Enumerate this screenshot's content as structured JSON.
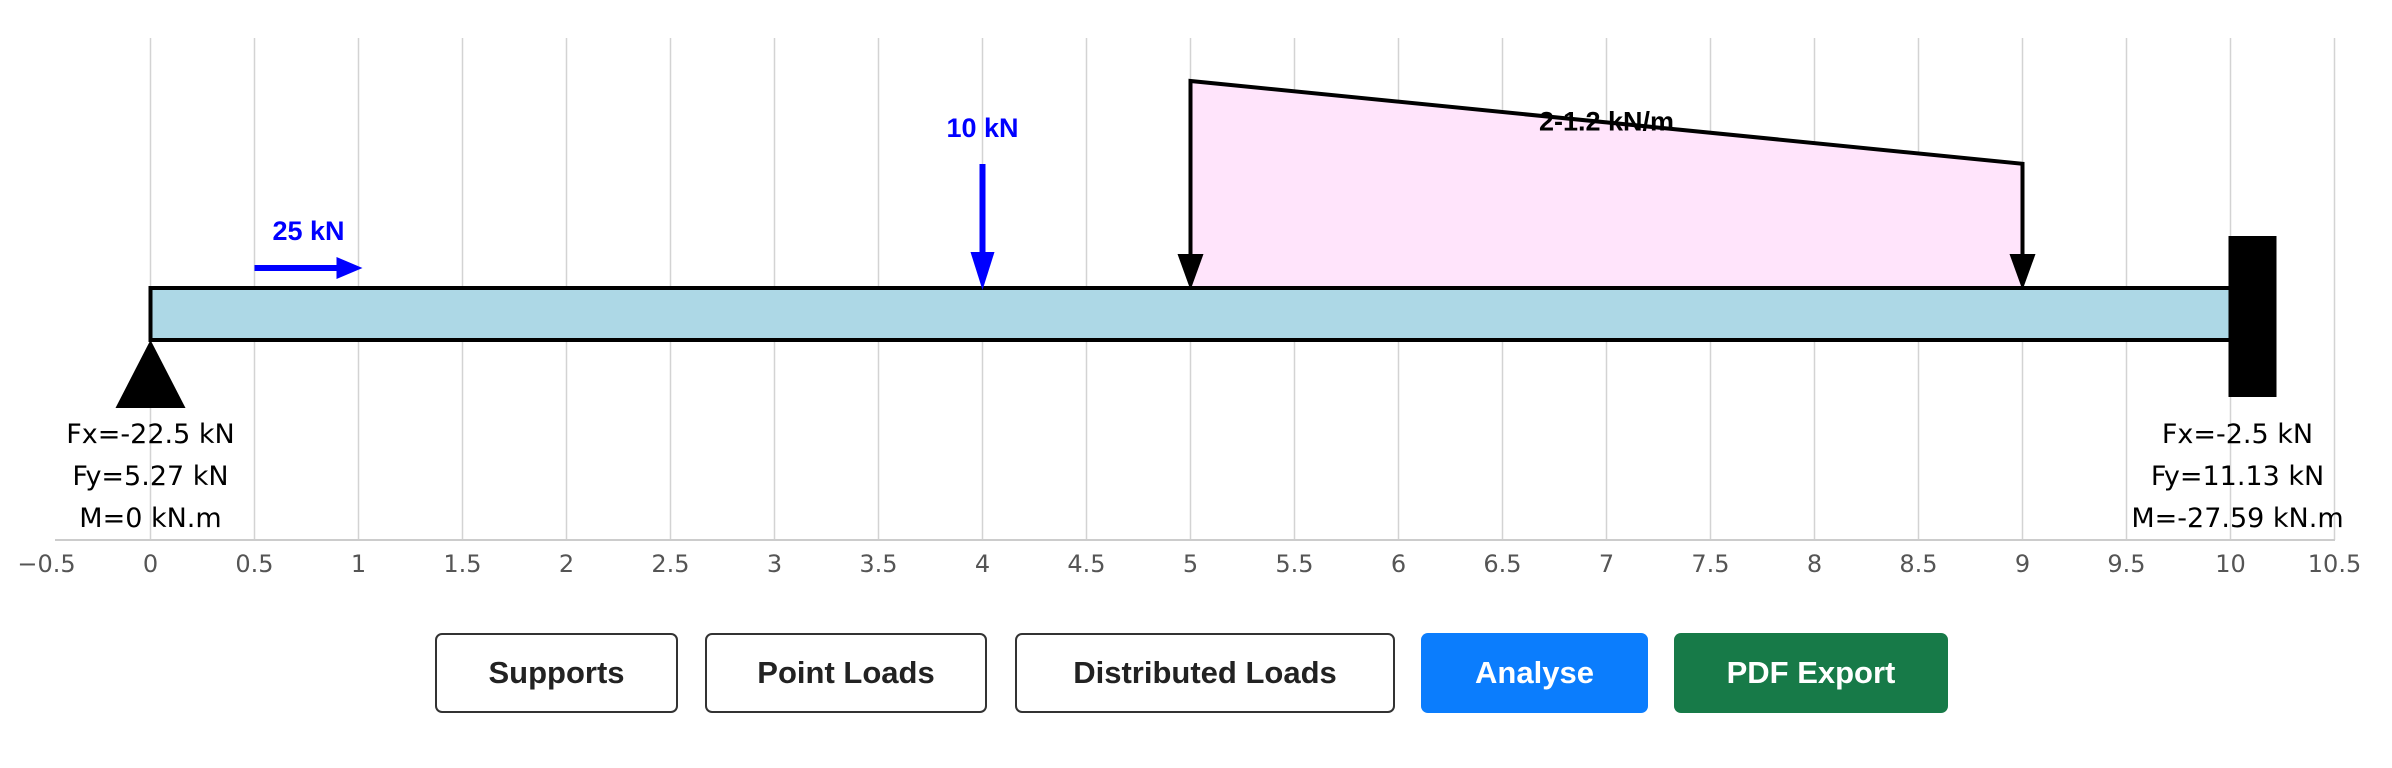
{
  "colors": {
    "beam_fill": "#add8e6",
    "point_load": "#0000ff",
    "distributed_fill": "#ffe4fb",
    "grid": "#d3d3d3",
    "primary_button": "#0b7dfd",
    "success_button": "#177a48"
  },
  "axis": {
    "min": -0.5,
    "max": 10.5,
    "step": 0.5,
    "tick_labels": [
      "−0.5",
      "0",
      "0.5",
      "1",
      "1.5",
      "2",
      "2.5",
      "3",
      "3.5",
      "4",
      "4.5",
      "5",
      "5.5",
      "6",
      "6.5",
      "7",
      "7.5",
      "8",
      "8.5",
      "9",
      "9.5",
      "10",
      "10.5"
    ]
  },
  "beam": {
    "start": 0,
    "end": 10
  },
  "supports": [
    {
      "type": "pin",
      "icon": "pin-support-icon",
      "position": 0,
      "reactions": [
        "Fx=-22.5 kN",
        "Fy=5.27 kN",
        "M=0 kN.m"
      ]
    },
    {
      "type": "fixed",
      "icon": "fixed-support-icon",
      "position": 10,
      "reactions": [
        "Fx=-2.5 kN",
        "Fy=11.13 kN",
        "M=-27.59 kN.m"
      ]
    }
  ],
  "point_loads": [
    {
      "direction": "horizontal",
      "from": 0.5,
      "to": 1,
      "label": "25 kN"
    },
    {
      "direction": "vertical",
      "position": 4,
      "label": "10 kN"
    }
  ],
  "distributed_loads": [
    {
      "start": 5,
      "end": 9,
      "w_start": 2,
      "w_end": 1.2,
      "label": "2-1.2 kN/m"
    }
  ],
  "buttons": {
    "supports": "Supports",
    "point_loads": "Point Loads",
    "distributed_loads": "Distributed Loads",
    "analyse": "Analyse",
    "pdf_export": "PDF Export"
  }
}
